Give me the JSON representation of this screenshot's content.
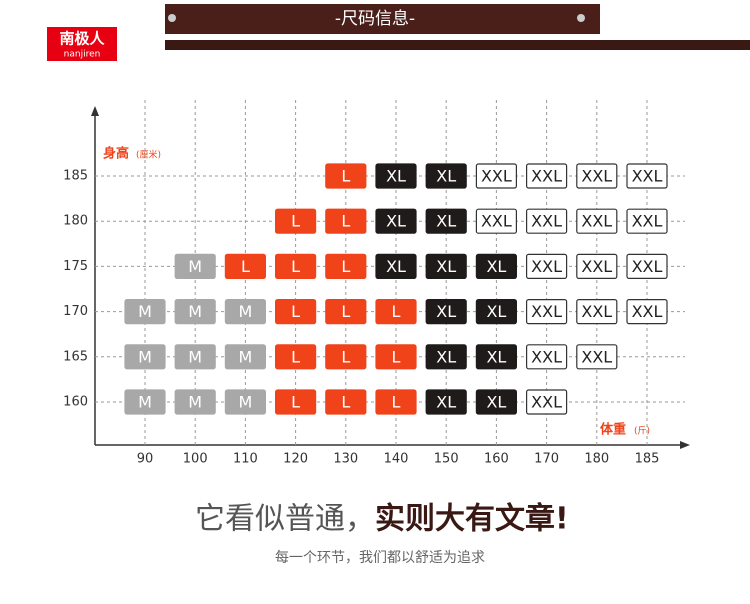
{
  "logo": {
    "name": "南极人",
    "latin": "nanjiren"
  },
  "header": {
    "title": "-尺码信息-"
  },
  "grid": {
    "y_label": "身高",
    "y_unit": "(厘米)",
    "x_label": "体重",
    "x_unit": "(斤)",
    "columns": [
      90,
      100,
      110,
      120,
      130,
      140,
      150,
      160,
      170,
      180,
      185
    ],
    "rows": [
      {
        "height": 185,
        "sizes": [
          null,
          null,
          null,
          null,
          "L",
          "XL",
          "XL",
          "XXL",
          "XXL",
          "XXL",
          "XXL"
        ]
      },
      {
        "height": 180,
        "sizes": [
          null,
          null,
          null,
          "L",
          "L",
          "XL",
          "XL",
          "XXL",
          "XXL",
          "XXL",
          "XXL"
        ]
      },
      {
        "height": 175,
        "sizes": [
          null,
          "M",
          "L",
          "L",
          "L",
          "XL",
          "XL",
          "XL",
          "XXL",
          "XXL",
          "XXL"
        ]
      },
      {
        "height": 170,
        "sizes": [
          "M",
          "M",
          "M",
          "L",
          "L",
          "L",
          "XL",
          "XL",
          "XXL",
          "XXL",
          "XXL"
        ]
      },
      {
        "height": 165,
        "sizes": [
          "M",
          "M",
          "M",
          "L",
          "L",
          "L",
          "XL",
          "XL",
          "XXL",
          "XXL",
          null
        ]
      },
      {
        "height": 160,
        "sizes": [
          "M",
          "M",
          "M",
          "L",
          "L",
          "L",
          "XL",
          "XL",
          "XXL",
          null,
          null
        ]
      }
    ],
    "size_styles": {
      "M": {
        "fill": "#a8a8a8",
        "stroke": "#a8a8a8",
        "text": "#ffffff"
      },
      "L": {
        "fill": "#f0431a",
        "stroke": "#f0431a",
        "text": "#ffffff"
      },
      "XL": {
        "fill": "#1e1b1a",
        "stroke": "#1e1b1a",
        "text": "#ffffff"
      },
      "XXL": {
        "fill": "#ffffff",
        "stroke": "#333333",
        "text": "#222222"
      }
    }
  },
  "slogan": {
    "plain": "它看似普通，",
    "bold": "实则大有文章!"
  },
  "subtitle": "每一个环节，我们都以舒适为追求"
}
